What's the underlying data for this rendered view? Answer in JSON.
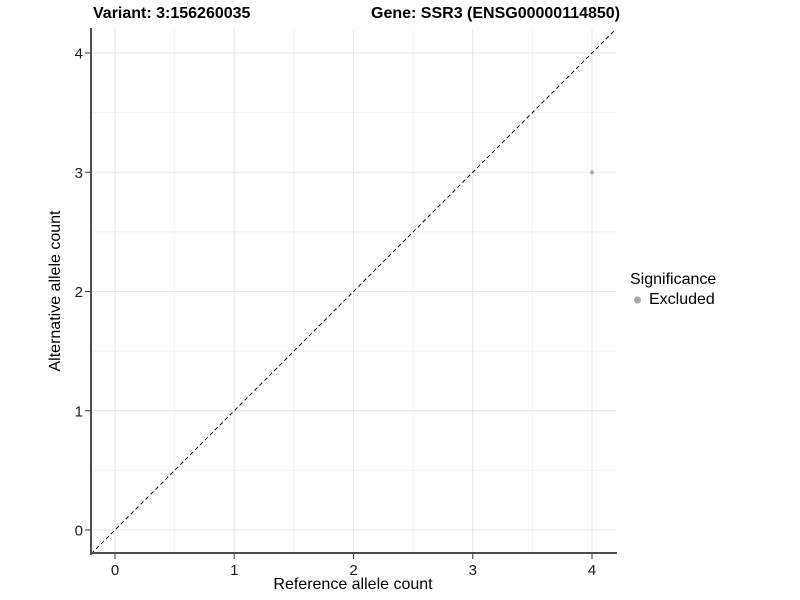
{
  "chart_data": {
    "type": "scatter",
    "title_variant": "Variant: 3:156260035",
    "title_gene": "Gene: SSR3 (ENSG00000114850)",
    "xlabel": "Reference allele count",
    "ylabel": "Alternative allele count",
    "xlim": [
      -0.2,
      4.2
    ],
    "ylim": [
      -0.2,
      4.2
    ],
    "x_ticks": [
      0,
      1,
      2,
      3,
      4
    ],
    "y_ticks": [
      0,
      1,
      2,
      3,
      4
    ],
    "x_minor_ticks": [
      0.5,
      1.5,
      2.5,
      3.5
    ],
    "y_minor_ticks": [
      0.5,
      1.5,
      2.5,
      3.5
    ],
    "grid": "major+minor",
    "identity_line": {
      "style": "dashed",
      "color": "#000000",
      "from": [
        -0.2,
        -0.2
      ],
      "to": [
        4.2,
        4.2
      ]
    },
    "series": [
      {
        "name": "Excluded",
        "color": "#b5b5b5",
        "point_radius": 2.2,
        "points": [
          [
            4,
            3
          ]
        ]
      }
    ],
    "legend": {
      "title": "Significance",
      "position": "right",
      "entries": [
        {
          "label": "Excluded",
          "color": "#a8a8a8"
        }
      ]
    },
    "colors": {
      "background": "#ffffff",
      "grid_major": "#e6e6e6",
      "grid_minor": "#f2f2f2",
      "axis_line": "#4d4d4d",
      "tick_mark": "#333333",
      "tick_label": "#1a1a1a"
    }
  }
}
